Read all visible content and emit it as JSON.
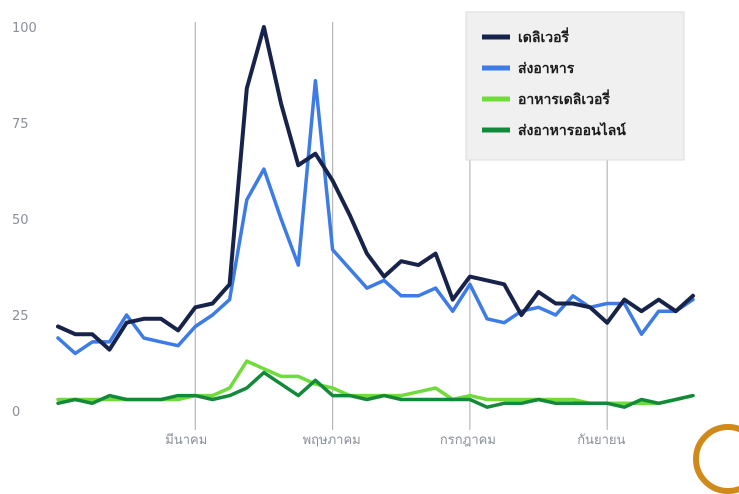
{
  "chart_data": {
    "type": "line",
    "title": "",
    "xlabel": "",
    "ylabel": "",
    "ylim": [
      0,
      100
    ],
    "yticks": [
      0,
      25,
      50,
      75,
      100
    ],
    "x_labels": [
      "มีนาคม",
      "พฤษภาคม",
      "กรกฎาคม",
      "กันยายน"
    ],
    "x_label_positions": [
      8,
      16,
      24,
      32
    ],
    "grid": "vertical lines at month labels",
    "legend_position": "top-right",
    "x": [
      0,
      1,
      2,
      3,
      4,
      5,
      6,
      7,
      8,
      9,
      10,
      11,
      12,
      13,
      14,
      15,
      16,
      17,
      18,
      19,
      20,
      21,
      22,
      23,
      24,
      25,
      26,
      27,
      28,
      29,
      30,
      31,
      32,
      33,
      34,
      35,
      36,
      37
    ],
    "series": [
      {
        "name": "เดลิเวอรี่",
        "color": "#17234a",
        "values": [
          22,
          20,
          20,
          16,
          23,
          24,
          24,
          21,
          27,
          28,
          33,
          84,
          100,
          80,
          64,
          67,
          60,
          51,
          41,
          35,
          39,
          38,
          41,
          29,
          35,
          34,
          33,
          25,
          31,
          28,
          28,
          27,
          23,
          29,
          26,
          29,
          26,
          30
        ]
      },
      {
        "name": "ส่งอาหาร",
        "color": "#3d7be6",
        "values": [
          19,
          15,
          18,
          18,
          25,
          19,
          18,
          17,
          22,
          25,
          29,
          55,
          63,
          50,
          38,
          86,
          42,
          37,
          32,
          34,
          30,
          30,
          32,
          26,
          33,
          24,
          23,
          26,
          27,
          25,
          30,
          27,
          28,
          28,
          20,
          26,
          26,
          29
        ]
      },
      {
        "name": "อาหารเดลิเวอรี่",
        "color": "#6fdc3c",
        "values": [
          3,
          3,
          3,
          3,
          3,
          3,
          3,
          3,
          4,
          4,
          6,
          13,
          11,
          9,
          9,
          7,
          6,
          4,
          4,
          4,
          4,
          5,
          6,
          3,
          4,
          3,
          3,
          3,
          3,
          3,
          3,
          2,
          2,
          2,
          2,
          2,
          3,
          4
        ]
      },
      {
        "name": "ส่งอาหารออนไลน์",
        "color": "#138a3a",
        "values": [
          2,
          3,
          2,
          4,
          3,
          3,
          3,
          4,
          4,
          3,
          4,
          6,
          10,
          7,
          4,
          8,
          4,
          4,
          3,
          4,
          3,
          3,
          3,
          3,
          3,
          1,
          2,
          2,
          3,
          2,
          2,
          2,
          2,
          1,
          3,
          2,
          3,
          4
        ]
      }
    ]
  }
}
